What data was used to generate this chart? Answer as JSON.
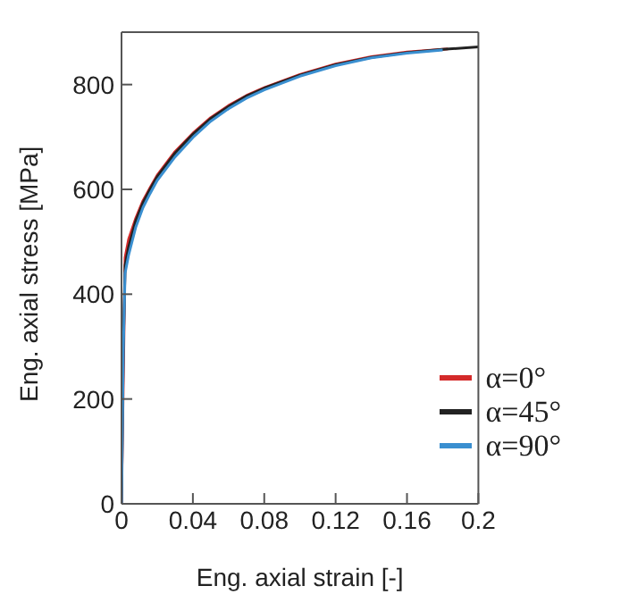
{
  "chart_data": {
    "type": "line",
    "xlabel": "Eng. axial strain [-]",
    "ylabel": "Eng. axial stress [MPa]",
    "xlim": [
      0,
      0.2
    ],
    "ylim": [
      0,
      900
    ],
    "xticks": [
      0,
      0.04,
      0.08,
      0.12,
      0.16,
      0.2
    ],
    "yticks": [
      0,
      200,
      400,
      600,
      800
    ],
    "grid": false,
    "legend": "bottom right",
    "marker": "none",
    "line_style": "solid",
    "series": [
      {
        "name": "α=0°",
        "color": "#d42a2a",
        "x": [
          0,
          0.001,
          0.002,
          0.004,
          0.008,
          0.012,
          0.016,
          0.02,
          0.03,
          0.04,
          0.05,
          0.06,
          0.07,
          0.08,
          0.1,
          0.12,
          0.14,
          0.16,
          0.183
        ],
        "values": [
          0,
          null,
          470,
          505,
          545,
          578,
          603,
          627,
          672,
          707,
          737,
          760,
          779,
          794,
          819,
          839,
          853,
          862,
          868
        ]
      },
      {
        "name": "α=45°",
        "color": "#222222",
        "x": [
          0,
          0.001,
          0.002,
          0.004,
          0.008,
          0.012,
          0.016,
          0.02,
          0.03,
          0.04,
          0.05,
          0.06,
          0.07,
          0.08,
          0.1,
          0.12,
          0.14,
          0.16,
          0.18,
          0.2
        ],
        "values": [
          0,
          300,
          455,
          490,
          540,
          574,
          600,
          624,
          669,
          705,
          735,
          758,
          778,
          793,
          818,
          838,
          852,
          861,
          867,
          872
        ]
      },
      {
        "name": "α=90°",
        "color": "#3a8fd0",
        "x": [
          0,
          0.001,
          0.002,
          0.004,
          0.008,
          0.012,
          0.016,
          0.02,
          0.03,
          0.04,
          0.05,
          0.06,
          0.07,
          0.08,
          0.1,
          0.12,
          0.14,
          0.16,
          0.18
        ],
        "values": [
          0,
          290,
          440,
          475,
          528,
          565,
          592,
          617,
          662,
          699,
          730,
          754,
          774,
          790,
          816,
          836,
          851,
          860,
          866
        ]
      }
    ]
  }
}
